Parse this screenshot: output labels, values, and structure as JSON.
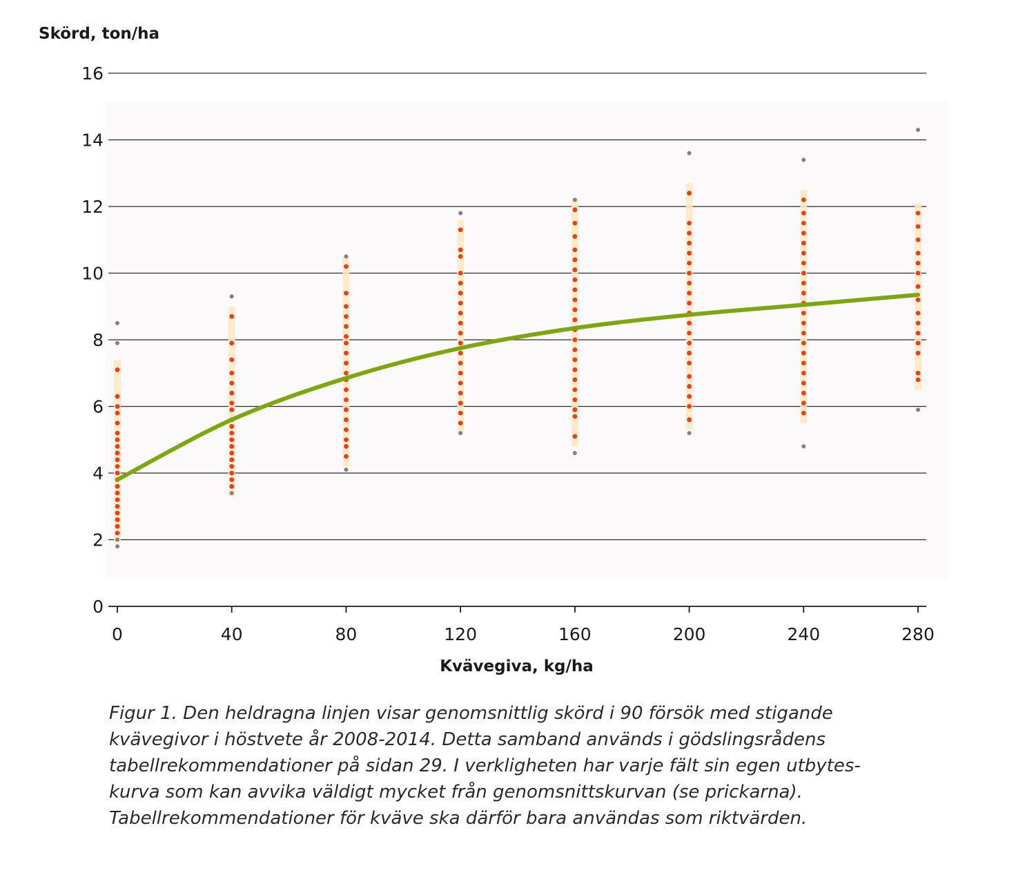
{
  "chart_data": {
    "type": "scatter",
    "ylabel": "Skörd, ton/ha",
    "xlabel": "Kvävegiva, kg/ha",
    "xlim": [
      0,
      280
    ],
    "ylim": [
      0,
      16
    ],
    "x_ticks": [
      "0",
      "40",
      "80",
      "120",
      "160",
      "200",
      "240",
      "280"
    ],
    "y_ticks": [
      "0",
      "2",
      "4",
      "6",
      "8",
      "10",
      "12",
      "14",
      "16"
    ],
    "grid": "horizontal",
    "colors": {
      "curve": "#7ea614",
      "points": "#e8401c",
      "outliers": "#8a7c82",
      "band": "#ffe9c4",
      "plot_bg": "#fbf9f9"
    },
    "x": [
      0,
      40,
      80,
      120,
      160,
      200,
      240,
      280
    ],
    "series": [
      {
        "type": "line",
        "values": [
          3.8,
          5.6,
          6.85,
          7.75,
          8.35,
          8.75,
          9.05,
          9.35
        ]
      },
      {
        "type": "scatter",
        "points": [
          [
            0,
            8.5
          ],
          [
            0,
            7.9
          ],
          [
            0,
            7.1
          ],
          [
            0,
            6.3
          ],
          [
            0,
            6.0
          ],
          [
            0,
            5.8
          ],
          [
            0,
            5.5
          ],
          [
            0,
            5.2
          ],
          [
            0,
            5.0
          ],
          [
            0,
            4.8
          ],
          [
            0,
            4.6
          ],
          [
            0,
            4.4
          ],
          [
            0,
            4.2
          ],
          [
            0,
            4.0
          ],
          [
            0,
            3.8
          ],
          [
            0,
            3.6
          ],
          [
            0,
            3.4
          ],
          [
            0,
            3.2
          ],
          [
            0,
            3.0
          ],
          [
            0,
            2.8
          ],
          [
            0,
            2.6
          ],
          [
            0,
            2.4
          ],
          [
            0,
            2.2
          ],
          [
            0,
            2.0
          ],
          [
            0,
            1.8
          ],
          [
            40,
            9.3
          ],
          [
            40,
            8.7
          ],
          [
            40,
            7.9
          ],
          [
            40,
            7.4
          ],
          [
            40,
            7.0
          ],
          [
            40,
            6.7
          ],
          [
            40,
            6.4
          ],
          [
            40,
            6.1
          ],
          [
            40,
            5.9
          ],
          [
            40,
            5.6
          ],
          [
            40,
            5.4
          ],
          [
            40,
            5.2
          ],
          [
            40,
            5.0
          ],
          [
            40,
            4.8
          ],
          [
            40,
            4.6
          ],
          [
            40,
            4.4
          ],
          [
            40,
            4.2
          ],
          [
            40,
            4.0
          ],
          [
            40,
            3.8
          ],
          [
            40,
            3.6
          ],
          [
            40,
            3.4
          ],
          [
            80,
            10.5
          ],
          [
            80,
            10.2
          ],
          [
            80,
            9.4
          ],
          [
            80,
            9.0
          ],
          [
            80,
            8.7
          ],
          [
            80,
            8.4
          ],
          [
            80,
            8.1
          ],
          [
            80,
            7.9
          ],
          [
            80,
            7.6
          ],
          [
            80,
            7.3
          ],
          [
            80,
            7.0
          ],
          [
            80,
            6.8
          ],
          [
            80,
            6.5
          ],
          [
            80,
            6.2
          ],
          [
            80,
            5.9
          ],
          [
            80,
            5.6
          ],
          [
            80,
            5.3
          ],
          [
            80,
            5.0
          ],
          [
            80,
            4.8
          ],
          [
            80,
            4.5
          ],
          [
            80,
            4.1
          ],
          [
            120,
            11.8
          ],
          [
            120,
            11.3
          ],
          [
            120,
            10.7
          ],
          [
            120,
            10.5
          ],
          [
            120,
            10.0
          ],
          [
            120,
            9.7
          ],
          [
            120,
            9.4
          ],
          [
            120,
            9.1
          ],
          [
            120,
            8.8
          ],
          [
            120,
            8.5
          ],
          [
            120,
            8.2
          ],
          [
            120,
            7.9
          ],
          [
            120,
            7.6
          ],
          [
            120,
            7.3
          ],
          [
            120,
            7.0
          ],
          [
            120,
            6.7
          ],
          [
            120,
            6.4
          ],
          [
            120,
            6.1
          ],
          [
            120,
            5.8
          ],
          [
            120,
            5.5
          ],
          [
            120,
            5.2
          ],
          [
            160,
            12.2
          ],
          [
            160,
            11.9
          ],
          [
            160,
            11.5
          ],
          [
            160,
            11.1
          ],
          [
            160,
            10.7
          ],
          [
            160,
            10.4
          ],
          [
            160,
            10.1
          ],
          [
            160,
            9.8
          ],
          [
            160,
            9.5
          ],
          [
            160,
            9.2
          ],
          [
            160,
            8.9
          ],
          [
            160,
            8.6
          ],
          [
            160,
            8.3
          ],
          [
            160,
            8.0
          ],
          [
            160,
            7.7
          ],
          [
            160,
            7.4
          ],
          [
            160,
            7.1
          ],
          [
            160,
            6.8
          ],
          [
            160,
            6.5
          ],
          [
            160,
            6.2
          ],
          [
            160,
            5.9
          ],
          [
            160,
            5.7
          ],
          [
            160,
            5.1
          ],
          [
            160,
            4.6
          ],
          [
            200,
            13.6
          ],
          [
            200,
            12.4
          ],
          [
            200,
            11.5
          ],
          [
            200,
            11.2
          ],
          [
            200,
            10.9
          ],
          [
            200,
            10.6
          ],
          [
            200,
            10.3
          ],
          [
            200,
            10.0
          ],
          [
            200,
            9.7
          ],
          [
            200,
            9.4
          ],
          [
            200,
            9.1
          ],
          [
            200,
            8.8
          ],
          [
            200,
            8.5
          ],
          [
            200,
            8.2
          ],
          [
            200,
            7.9
          ],
          [
            200,
            7.6
          ],
          [
            200,
            7.3
          ],
          [
            200,
            6.9
          ],
          [
            200,
            6.6
          ],
          [
            200,
            6.3
          ],
          [
            200,
            6.0
          ],
          [
            200,
            5.6
          ],
          [
            200,
            5.2
          ],
          [
            240,
            13.4
          ],
          [
            240,
            12.2
          ],
          [
            240,
            11.8
          ],
          [
            240,
            11.5
          ],
          [
            240,
            11.2
          ],
          [
            240,
            10.9
          ],
          [
            240,
            10.6
          ],
          [
            240,
            10.3
          ],
          [
            240,
            10.0
          ],
          [
            240,
            9.7
          ],
          [
            240,
            9.4
          ],
          [
            240,
            9.1
          ],
          [
            240,
            8.8
          ],
          [
            240,
            8.5
          ],
          [
            240,
            8.2
          ],
          [
            240,
            7.9
          ],
          [
            240,
            7.6
          ],
          [
            240,
            7.3
          ],
          [
            240,
            7.0
          ],
          [
            240,
            6.7
          ],
          [
            240,
            6.4
          ],
          [
            240,
            6.1
          ],
          [
            240,
            5.8
          ],
          [
            240,
            4.8
          ],
          [
            280,
            14.3
          ],
          [
            280,
            11.8
          ],
          [
            280,
            11.4
          ],
          [
            280,
            11.0
          ],
          [
            280,
            10.6
          ],
          [
            280,
            10.3
          ],
          [
            280,
            10.0
          ],
          [
            280,
            9.6
          ],
          [
            280,
            9.2
          ],
          [
            280,
            8.8
          ],
          [
            280,
            8.5
          ],
          [
            280,
            8.2
          ],
          [
            280,
            7.9
          ],
          [
            280,
            7.6
          ],
          [
            280,
            7.0
          ],
          [
            280,
            6.8
          ],
          [
            280,
            5.9
          ]
        ]
      }
    ]
  },
  "caption": [
    "Figur 1. Den heldragna linjen visar genomsnittlig skörd i 90 försök med stigande",
    "kvävegivor i höstvete år 2008-2014. Detta samband används i gödslingsrådens",
    "tabellrekommendationer på sidan 29. I verkligheten har varje fält sin egen utbytes-",
    "kurva som kan avvika väldigt mycket från genomsnittskurvan (se prickarna).",
    "Tabellrekommendationer för kväve ska därför bara användas som riktvärden."
  ]
}
